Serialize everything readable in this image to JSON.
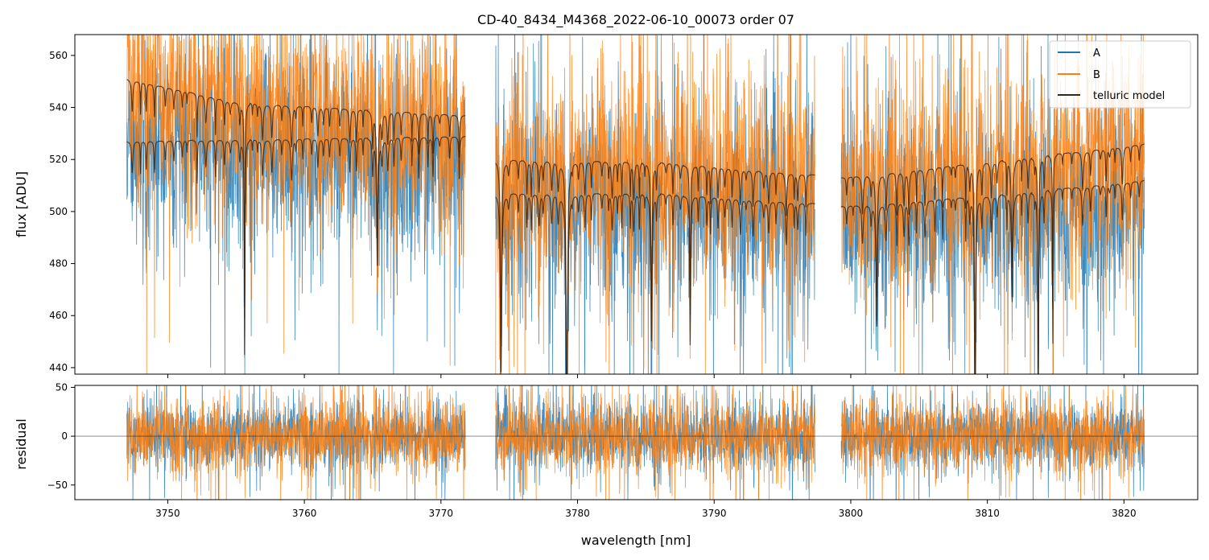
{
  "colors": {
    "A": "#1f77b4",
    "B": "#ff7f0e",
    "telluric": "#3a2414",
    "zero_line": "#000000"
  },
  "chart_data": [
    {
      "type": "line",
      "panel": "flux",
      "title": "CD-40_8434_M4368_2022-06-10_00073  order 07",
      "xlabel": "",
      "ylabel": "flux [ADU]",
      "xlim": [
        3743.2,
        3825.4
      ],
      "ylim": [
        437.5,
        568
      ],
      "xticks": [
        3750,
        3760,
        3770,
        3780,
        3790,
        3800,
        3810,
        3820
      ],
      "yticks": [
        440,
        460,
        480,
        500,
        520,
        540,
        560
      ],
      "legend_position": "top-right",
      "segments": [
        [
          3747.0,
          3771.8
        ],
        [
          3774.0,
          3797.4
        ],
        [
          3799.3,
          3821.5
        ]
      ],
      "series": [
        {
          "name": "A",
          "kind": "noisy",
          "baseline": [
            [
              3747,
              527
            ],
            [
              3771.8,
              521
            ],
            [
              3774,
              505
            ],
            [
              3786,
              505
            ],
            [
              3797.4,
              501
            ],
            [
              3799.3,
              499
            ],
            [
              3810,
              503
            ],
            [
              3821.5,
              504
            ]
          ],
          "noise": 18
        },
        {
          "name": "B",
          "kind": "noisy",
          "baseline": [
            [
              3747,
              551
            ],
            [
              3755,
              539
            ],
            [
              3771.8,
              531
            ],
            [
              3774,
              517
            ],
            [
              3786,
              517
            ],
            [
              3797.4,
              512
            ],
            [
              3799.3,
              512
            ],
            [
              3810,
              517
            ],
            [
              3821.5,
              520
            ]
          ],
          "noise": 20
        },
        {
          "name": "telluric model",
          "kind": "model",
          "curves": [
            [
              [
                3747,
                551
              ],
              [
                3755,
                542
              ],
              [
                3771.8,
                537
              ],
              [
                3774,
                520
              ],
              [
                3786,
                519
              ],
              [
                3797.4,
                514
              ],
              [
                3799.3,
                513
              ],
              [
                3810,
                519
              ],
              [
                3821.5,
                526
              ]
            ],
            [
              [
                3747,
                527
              ],
              [
                3771.8,
                529
              ],
              [
                3774,
                507
              ],
              [
                3786,
                507
              ],
              [
                3797.4,
                503
              ],
              [
                3799.3,
                502
              ],
              [
                3810,
                506
              ],
              [
                3821.5,
                512
              ]
            ]
          ]
        }
      ]
    },
    {
      "type": "line",
      "panel": "residual",
      "title": "",
      "xlabel": "wavelength [nm]",
      "ylabel": "residual",
      "xlim": [
        3743.2,
        3825.4
      ],
      "ylim": [
        -65,
        52
      ],
      "xticks": [
        3750,
        3760,
        3770,
        3780,
        3790,
        3800,
        3810,
        3820
      ],
      "yticks": [
        -50,
        0,
        50
      ],
      "ytick_labels": [
        "−50",
        "0",
        "50"
      ],
      "zero_line": 0,
      "segments": [
        [
          3747.0,
          3771.8
        ],
        [
          3774.0,
          3797.4
        ],
        [
          3799.3,
          3821.5
        ]
      ],
      "series": [
        {
          "name": "A",
          "noise": 17
        },
        {
          "name": "B",
          "noise": 19
        }
      ]
    }
  ]
}
